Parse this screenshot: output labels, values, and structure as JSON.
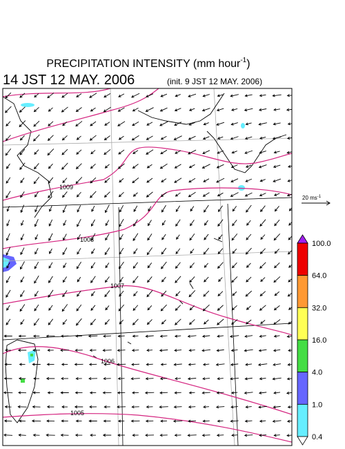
{
  "title": {
    "text": "PRECIPITATION INTENSITY (mm hour",
    "exponent": "-1",
    "close": ")"
  },
  "valid_time": "14 JST 12 MAY. 2006",
  "init_time": "(init. 9 JST 12 MAY. 2006)",
  "isobar_labels": [
    "1009",
    "1008",
    "1007",
    "1006",
    "1005"
  ],
  "reference_vector": {
    "label": "20 ms",
    "exponent": "-1"
  },
  "colorbar": {
    "labels": [
      "100.0",
      "64.0",
      "32.0",
      "16.0",
      "4.0",
      "1.0",
      "0.4"
    ],
    "colors": [
      "#a020f0",
      "#ee0000",
      "#ff9933",
      "#ffff55",
      "#44dd44",
      "#6666ff",
      "#66eeff",
      "#ffffff"
    ]
  }
}
